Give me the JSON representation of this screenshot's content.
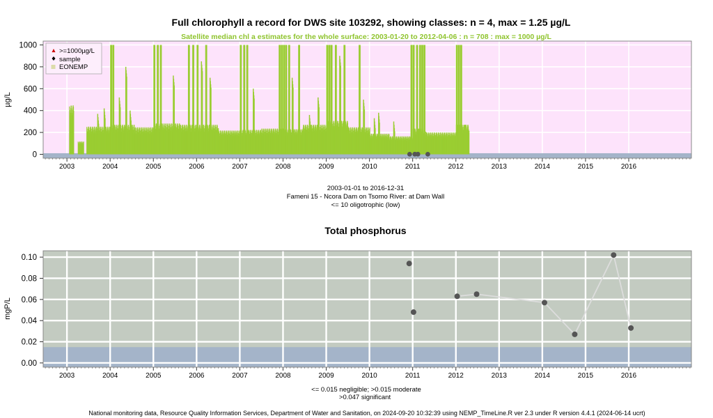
{
  "colors": {
    "chl_background": "#fde3fb",
    "tp_background": "#c3cbc1",
    "class_band": "#a4b4c9",
    "satellite": "#9acd32",
    "subtitle": "#8fc42e",
    "sample_marker": "#555555",
    "tp_line": "#dddddd",
    "legend_exceed": "#cc0000",
    "legend_eonemp": "#dcdcaa"
  },
  "chart_data": [
    {
      "type": "bar",
      "title": "Full chlorophyll a record for DWS site 103292, showing classes: n = 4, max = 1.25 µg/L",
      "subtitle": "Satellite median chl a estimates for the whole surface: 2003-01-20 to 2012-04-06 : n = 708 : max = 1000 µg/L",
      "ylabel": "µg/L",
      "xlabel": "",
      "xlim": [
        2002.45,
        2017.45
      ],
      "ylim": [
        -35,
        1035
      ],
      "x_ticks": [
        2003,
        2004,
        2005,
        2006,
        2007,
        2008,
        2009,
        2010,
        2011,
        2012,
        2013,
        2014,
        2015,
        2016
      ],
      "y_ticks": [
        0,
        200,
        400,
        600,
        800,
        1000
      ],
      "y_tick_labels": [
        "0",
        "200",
        "400",
        "600",
        "800",
        "1000"
      ],
      "class_band": [
        -35,
        10
      ],
      "legend": {
        "position": "top-left",
        "items": [
          ">=1000µg/L",
          "sample",
          "EONEMP"
        ]
      },
      "satellite_series": {
        "name": "EONEMP",
        "segments": [
          {
            "start": 2003.05,
            "end": 2003.15,
            "value": 380,
            "spikes": []
          },
          {
            "start": 2003.25,
            "end": 2003.38,
            "value": 100,
            "spikes": []
          },
          {
            "start": 2003.45,
            "end": 2004.0,
            "value": 215,
            "spikes": [
              [
                2003.7,
                370
              ],
              [
                2003.85,
                420
              ]
            ]
          },
          {
            "start": 2004.0,
            "end": 2004.55,
            "value": 230,
            "spikes": [
              [
                2004.0,
                1000
              ],
              [
                2004.05,
                1000
              ],
              [
                2004.2,
                520
              ],
              [
                2004.35,
                800
              ],
              [
                2004.45,
                400
              ]
            ]
          },
          {
            "start": 2004.55,
            "end": 2005.0,
            "value": 210,
            "spikes": []
          },
          {
            "start": 2005.0,
            "end": 2005.6,
            "value": 240,
            "spikes": [
              [
                2005.0,
                1000
              ],
              [
                2005.08,
                1000
              ],
              [
                2005.15,
                1000
              ],
              [
                2005.45,
                720
              ]
            ]
          },
          {
            "start": 2005.6,
            "end": 2006.5,
            "value": 230,
            "spikes": [
              [
                2005.8,
                1000
              ],
              [
                2005.9,
                1000
              ],
              [
                2006.0,
                1000
              ],
              [
                2006.1,
                850
              ],
              [
                2006.2,
                1000
              ],
              [
                2006.3,
                700
              ]
            ]
          },
          {
            "start": 2006.5,
            "end": 2007.0,
            "value": 185,
            "spikes": []
          },
          {
            "start": 2007.0,
            "end": 2007.5,
            "value": 190,
            "spikes": [
              [
                2007.0,
                1000
              ],
              [
                2007.08,
                1000
              ],
              [
                2007.15,
                1000
              ],
              [
                2007.3,
                600
              ]
            ]
          },
          {
            "start": 2007.5,
            "end": 2008.0,
            "value": 200,
            "spikes": [
              [
                2007.9,
                1000
              ],
              [
                2007.95,
                1000
              ]
            ]
          },
          {
            "start": 2008.0,
            "end": 2008.45,
            "value": 195,
            "spikes": [
              [
                2008.0,
                1000
              ],
              [
                2008.05,
                1000
              ],
              [
                2008.12,
                1000
              ],
              [
                2008.2,
                700
              ],
              [
                2008.35,
                1000
              ]
            ]
          },
          {
            "start": 2008.45,
            "end": 2009.0,
            "value": 230,
            "spikes": [
              [
                2008.6,
                360
              ],
              [
                2008.8,
                520
              ]
            ]
          },
          {
            "start": 2009.0,
            "end": 2009.5,
            "value": 260,
            "spikes": [
              [
                2009.0,
                1000
              ],
              [
                2009.05,
                1000
              ],
              [
                2009.1,
                1000
              ],
              [
                2009.2,
                1000
              ],
              [
                2009.3,
                900
              ],
              [
                2009.4,
                1000
              ]
            ]
          },
          {
            "start": 2009.5,
            "end": 2010.0,
            "value": 210,
            "spikes": [
              [
                2009.75,
                1000
              ],
              [
                2009.85,
                500
              ]
            ]
          },
          {
            "start": 2010.0,
            "end": 2010.45,
            "value": 160,
            "spikes": [
              [
                2010.1,
                330
              ],
              [
                2010.2,
                380
              ]
            ]
          },
          {
            "start": 2010.45,
            "end": 2011.0,
            "value": 140,
            "spikes": [
              [
                2010.55,
                300
              ],
              [
                2010.95,
                1000
              ]
            ]
          },
          {
            "start": 2011.0,
            "end": 2011.3,
            "value": 200,
            "spikes": [
              [
                2011.0,
                1000
              ],
              [
                2011.08,
                1000
              ],
              [
                2011.15,
                1000
              ],
              [
                2011.2,
                1000
              ],
              [
                2011.25,
                1000
              ]
            ]
          },
          {
            "start": 2011.3,
            "end": 2012.0,
            "value": 170,
            "spikes": []
          },
          {
            "start": 2012.0,
            "end": 2012.3,
            "value": 230,
            "spikes": [
              [
                2012.0,
                1000
              ],
              [
                2012.05,
                1000
              ],
              [
                2012.1,
                1000
              ],
              [
                2012.2,
                270
              ]
            ]
          }
        ]
      },
      "samples": [
        {
          "x": 2010.93,
          "y": 1.0
        },
        {
          "x": 2011.05,
          "y": 1.25
        },
        {
          "x": 2011.12,
          "y": 1.1
        },
        {
          "x": 2011.35,
          "y": 0.9
        }
      ]
    },
    {
      "type": "line",
      "title": "Total phosphorus",
      "ylabel": "mgP/L",
      "xlabel": "",
      "xlim": [
        2002.45,
        2017.45
      ],
      "ylim": [
        -0.004,
        0.106
      ],
      "x_ticks": [
        2003,
        2004,
        2005,
        2006,
        2007,
        2008,
        2009,
        2010,
        2011,
        2012,
        2013,
        2014,
        2015,
        2016
      ],
      "y_ticks": [
        0.0,
        0.02,
        0.04,
        0.06,
        0.08,
        0.1
      ],
      "y_tick_labels": [
        "0.00",
        "0.02",
        "0.04",
        "0.06",
        "0.08",
        "0.10"
      ],
      "class_bands": [
        {
          "label": "negligible",
          "range": [
            -0.004,
            0.015
          ]
        },
        {
          "label": "moderate",
          "range": [
            0.015,
            0.106
          ]
        }
      ],
      "series": [
        {
          "points": [
            {
              "x": 2010.92,
              "y": 0.094
            },
            {
              "x": 2011.02,
              "y": 0.048
            },
            {
              "x": 2012.03,
              "y": 0.063
            },
            {
              "x": 2012.48,
              "y": 0.065
            },
            {
              "x": 2014.05,
              "y": 0.057
            },
            {
              "x": 2014.75,
              "y": 0.027
            },
            {
              "x": 2015.65,
              "y": 0.102
            },
            {
              "x": 2016.05,
              "y": 0.033
            }
          ],
          "line_from_index": 2
        }
      ]
    }
  ],
  "texts": {
    "chl_xaxis_caption": "2003-01-01 to 2016-12-31",
    "chl_site_caption": "Fameni 15 - Ncora Dam on Tsomo River: at Dam Wall",
    "chl_class_caption": "<= 10 oligotrophic (low)",
    "tp_class_caption_1": "<= 0.015 negligible; >0.015 moderate",
    "tp_class_caption_2": ">0.047 significant",
    "footer": "National monitoring data, Resource Quality Information Services, Department of Water and Sanitation, on 2024-09-20 10:32:39 using NEMP_TimeLine.R ver 2.3 under R version 4.4.1 (2024-06-14 ucrt)"
  }
}
